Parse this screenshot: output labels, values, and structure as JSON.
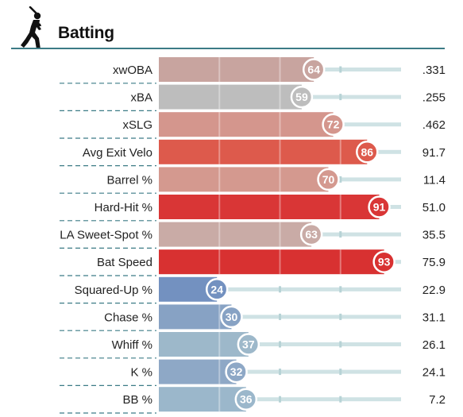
{
  "header": {
    "title": "Batting",
    "icon": "baseball-batter-icon"
  },
  "chart_data": {
    "type": "bar",
    "orientation": "horizontal",
    "title": "Batting",
    "value_range": [
      0,
      100
    ],
    "rows": [
      {
        "label": "xwOBA",
        "percentile": 64,
        "value": ".331",
        "color": "#c8a49f"
      },
      {
        "label": "xBA",
        "percentile": 59,
        "value": ".255",
        "color": "#bdbdbd"
      },
      {
        "label": "xSLG",
        "percentile": 72,
        "value": ".462",
        "color": "#d4968d"
      },
      {
        "label": "Avg Exit Velo",
        "percentile": 86,
        "value": "91.7",
        "color": "#dd5a4c"
      },
      {
        "label": "Barrel %",
        "percentile": 70,
        "value": "11.4",
        "color": "#d4998f"
      },
      {
        "label": "Hard-Hit %",
        "percentile": 91,
        "value": "51.0",
        "color": "#d93636"
      },
      {
        "label": "LA Sweet-Spot %",
        "percentile": 63,
        "value": "35.5",
        "color": "#c9aba6"
      },
      {
        "label": "Bat Speed",
        "percentile": 93,
        "value": "75.9",
        "color": "#d83131"
      },
      {
        "label": "Squared-Up %",
        "percentile": 24,
        "value": "22.9",
        "color": "#7391c0"
      },
      {
        "label": "Chase %",
        "percentile": 30,
        "value": "31.1",
        "color": "#87a2c4"
      },
      {
        "label": "Whiff %",
        "percentile": 37,
        "value": "26.1",
        "color": "#9db8ca"
      },
      {
        "label": "K %",
        "percentile": 32,
        "value": "24.1",
        "color": "#8ea8c6"
      },
      {
        "label": "BB %",
        "percentile": 36,
        "value": "7.2",
        "color": "#9bb7cb"
      }
    ]
  }
}
